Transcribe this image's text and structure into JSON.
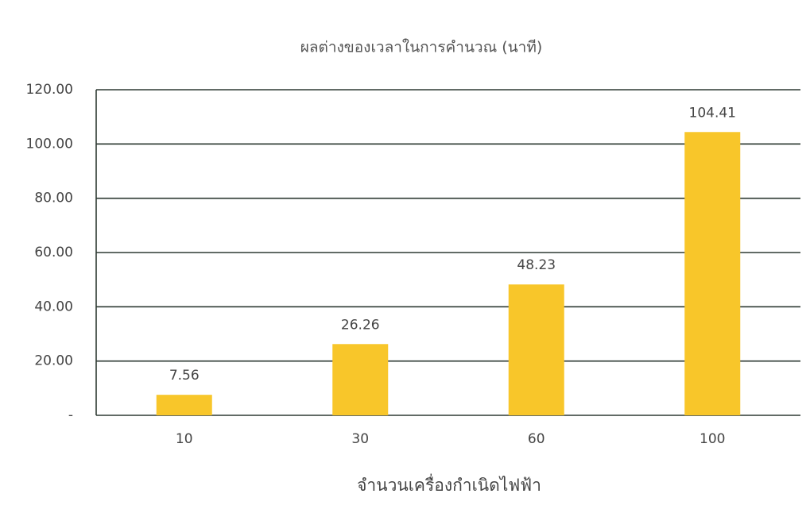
{
  "chart_data": {
    "type": "bar",
    "title": "ผลต่างของเวลาในการคำนวณ (นาที)",
    "x_label": "จำนวนเครื่องกำเนิดไฟฟ้า",
    "categories": [
      "10",
      "30",
      "60",
      "100"
    ],
    "values": [
      7.56,
      26.26,
      48.23,
      104.41
    ],
    "color": "#f8c62a",
    "ylim": [
      0,
      120
    ],
    "yticks": [
      {
        "value": 0,
        "label": "-"
      },
      {
        "value": 20,
        "label": "20.00"
      },
      {
        "value": 40,
        "label": "40.00"
      },
      {
        "value": 60,
        "label": "60.00"
      },
      {
        "value": 80,
        "label": "80.00"
      },
      {
        "value": 100,
        "label": "100.00"
      },
      {
        "value": 120,
        "label": "120.00"
      }
    ],
    "grid": true
  }
}
